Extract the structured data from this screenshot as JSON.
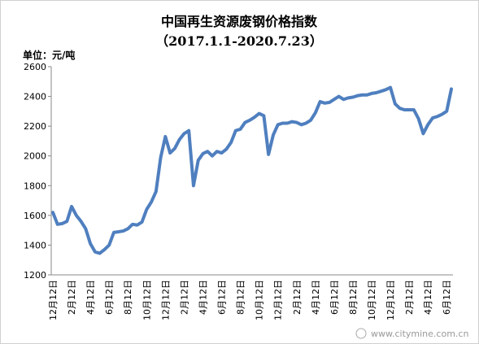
{
  "chart_data": {
    "type": "line",
    "title": "中国再生资源废钢价格指数",
    "subtitle": "（2017.1.1-2020.7.23）",
    "y_label": "单位：元/吨",
    "watermark": "www.citymine.com.cn",
    "color": "#4f7fbf",
    "ylim": [
      1200,
      2600
    ],
    "yticks": [
      1200,
      1400,
      1600,
      1800,
      2000,
      2200,
      2400,
      2600
    ],
    "grid": false,
    "categories": [
      "12月12日",
      null,
      null,
      null,
      "2月12日",
      null,
      null,
      null,
      "4月12日",
      null,
      null,
      null,
      "6月12日",
      null,
      null,
      null,
      "8月12日",
      null,
      null,
      null,
      "10月12日",
      null,
      null,
      null,
      "12月12日",
      null,
      null,
      null,
      "2月12日",
      null,
      null,
      null,
      "4月12日",
      null,
      null,
      null,
      "6月12日",
      null,
      null,
      null,
      "8月12日",
      null,
      null,
      null,
      "10月12日",
      null,
      null,
      null,
      "12月12日",
      null,
      null,
      null,
      "2月12日",
      null,
      null,
      null,
      "4月12日",
      null,
      null,
      null,
      "6月12日",
      null,
      null,
      null,
      "8月12日",
      null,
      null,
      null,
      "10月12日",
      null,
      null,
      null,
      "12月12日",
      null,
      null,
      null,
      "2月12日",
      null,
      null,
      null,
      "4月12日",
      null,
      null,
      null,
      "6月12日",
      null
    ],
    "values": [
      1620,
      1540,
      1545,
      1560,
      1660,
      1600,
      1560,
      1510,
      1410,
      1355,
      1345,
      1370,
      1400,
      1485,
      1490,
      1495,
      1510,
      1540,
      1535,
      1555,
      1640,
      1690,
      1760,
      1990,
      2130,
      2020,
      2050,
      2110,
      2150,
      2170,
      1800,
      1970,
      2015,
      2030,
      2000,
      2030,
      2020,
      2045,
      2090,
      2170,
      2180,
      2225,
      2240,
      2260,
      2285,
      2270,
      2010,
      2140,
      2210,
      2220,
      2220,
      2230,
      2225,
      2210,
      2220,
      2240,
      2290,
      2365,
      2355,
      2360,
      2380,
      2400,
      2380,
      2390,
      2395,
      2405,
      2410,
      2410,
      2420,
      2425,
      2435,
      2445,
      2460,
      2350,
      2320,
      2310,
      2310,
      2310,
      2250,
      2150,
      2210,
      2255,
      2265,
      2280,
      2300,
      2450
    ]
  }
}
